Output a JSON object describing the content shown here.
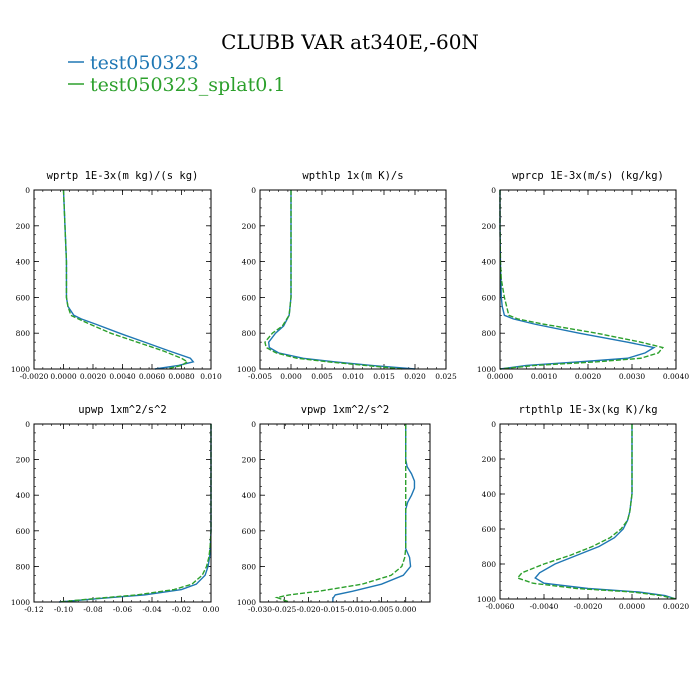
{
  "title": "CLUBB VAR at340E,-60N",
  "legend": [
    {
      "name": "test050323",
      "color": "#1f77b4",
      "dash": "solid"
    },
    {
      "name": "test050323_splat0.1",
      "color": "#2ca02c",
      "dash": "dashed"
    }
  ],
  "chart_data": [
    {
      "type": "line",
      "title": "wprtp  1E-3x(m kg)/(s kg)",
      "xlim": [
        -0.002,
        0.01
      ],
      "ylim": [
        1000,
        0
      ],
      "xticks": [
        "-0.0020",
        "0.0000",
        "0.0020",
        "0.0040",
        "0.0060",
        "0.0080",
        "0.010"
      ],
      "xtick_values": [
        -0.002,
        0.0,
        0.002,
        0.004,
        0.006,
        0.008,
        0.01
      ],
      "yticks": [
        "0",
        "200",
        "400",
        "600",
        "800",
        "1000"
      ],
      "ytick_values": [
        0,
        200,
        400,
        600,
        800,
        1000
      ],
      "series": [
        {
          "name": "test050323",
          "y": [
            0,
            200,
            400,
            500,
            600,
            650,
            700,
            720,
            750,
            800,
            850,
            900,
            940,
            960,
            980,
            1000
          ],
          "x": [
            0.0,
            0.0001,
            0.0002,
            0.0002,
            0.0002,
            0.0003,
            0.0007,
            0.0012,
            0.0022,
            0.0038,
            0.0055,
            0.0072,
            0.0086,
            0.0088,
            0.0078,
            0.0062
          ]
        },
        {
          "name": "test050323_splat0.1",
          "y": [
            0,
            200,
            400,
            500,
            600,
            650,
            700,
            720,
            750,
            800,
            850,
            900,
            940,
            960,
            980,
            1000
          ],
          "x": [
            0.0,
            0.0001,
            0.0002,
            0.0002,
            0.0002,
            0.0003,
            0.0005,
            0.001,
            0.0018,
            0.0032,
            0.005,
            0.0068,
            0.008,
            0.0084,
            0.008,
            0.007
          ]
        }
      ]
    },
    {
      "type": "line",
      "title": "wpthlp  1x(m K)/s",
      "xlim": [
        -0.005,
        0.025
      ],
      "ylim": [
        1000,
        0
      ],
      "xticks": [
        "-0.005",
        "0.000",
        "0.005",
        "0.010",
        "0.015",
        "0.020",
        "0.025"
      ],
      "xtick_values": [
        -0.005,
        0.0,
        0.005,
        0.01,
        0.015,
        0.02,
        0.025
      ],
      "yticks": [
        "0",
        "200",
        "400",
        "600",
        "800",
        "1000"
      ],
      "ytick_values": [
        0,
        200,
        400,
        600,
        800,
        1000
      ],
      "series": [
        {
          "name": "test050323",
          "y": [
            0,
            200,
            400,
            600,
            700,
            760,
            800,
            850,
            880,
            910,
            940,
            960,
            980,
            1000
          ],
          "x": [
            0.0,
            0.0,
            0.0,
            0.0,
            -0.0003,
            -0.0012,
            -0.0025,
            -0.0036,
            -0.0035,
            -0.002,
            0.002,
            0.007,
            0.013,
            0.02
          ]
        },
        {
          "name": "test050323_splat0.1",
          "y": [
            0,
            200,
            400,
            600,
            700,
            760,
            800,
            850,
            880,
            910,
            940,
            960,
            980,
            1000
          ],
          "x": [
            0.0,
            0.0,
            0.0,
            0.0,
            -0.0003,
            -0.0014,
            -0.003,
            -0.0042,
            -0.004,
            -0.0024,
            0.001,
            0.006,
            0.012,
            0.018
          ]
        }
      ]
    },
    {
      "type": "line",
      "title": "wprcp  1E-3x(m/s) (kg/kg)",
      "xlim": [
        0.0,
        0.004
      ],
      "ylim": [
        1000,
        0
      ],
      "xticks": [
        "0.0000",
        "0.0010",
        "0.0020",
        "0.0030",
        "0.0040"
      ],
      "xtick_values": [
        0.0,
        0.001,
        0.002,
        0.003,
        0.004
      ],
      "yticks": [
        "0",
        "200",
        "400",
        "600",
        "800",
        "1000"
      ],
      "ytick_values": [
        0,
        200,
        400,
        600,
        800,
        1000
      ],
      "series": [
        {
          "name": "test050323",
          "y": [
            0,
            200,
            400,
            500,
            600,
            650,
            700,
            720,
            750,
            800,
            850,
            880,
            910,
            940,
            960,
            980,
            1000
          ],
          "x": [
            0.0,
            0.0,
            1e-05,
            2e-05,
            3e-05,
            5e-05,
            0.0001,
            0.0003,
            0.0008,
            0.0018,
            0.0029,
            0.0035,
            0.0033,
            0.0029,
            0.0018,
            0.0006,
            0.0
          ]
        },
        {
          "name": "test050323_splat0.1",
          "y": [
            0,
            200,
            400,
            500,
            600,
            650,
            700,
            720,
            750,
            800,
            850,
            880,
            910,
            940,
            960,
            980,
            1000
          ],
          "x": [
            0.0,
            0.0,
            1e-05,
            3e-05,
            0.0001,
            0.00015,
            0.0002,
            0.0004,
            0.001,
            0.0022,
            0.0032,
            0.0037,
            0.0036,
            0.0032,
            0.0022,
            0.0008,
            0.0
          ]
        }
      ]
    },
    {
      "type": "line",
      "title": "upwp  1xm^2/s^2",
      "xlim": [
        -0.12,
        0.0
      ],
      "ylim": [
        1000,
        0
      ],
      "xticks": [
        "-0.12",
        "-0.10",
        "-0.08",
        "-0.06",
        "-0.04",
        "-0.02",
        "0.00"
      ],
      "xtick_values": [
        -0.12,
        -0.1,
        -0.08,
        -0.06,
        -0.04,
        -0.02,
        0.0
      ],
      "yticks": [
        "0",
        "200",
        "400",
        "600",
        "800",
        "1000"
      ],
      "ytick_values": [
        0,
        200,
        400,
        600,
        800,
        1000
      ],
      "series": [
        {
          "name": "test050323",
          "y": [
            0,
            200,
            400,
            600,
            700,
            750,
            800,
            850,
            900,
            930,
            960,
            980,
            1000
          ],
          "x": [
            0.0,
            0.0,
            0.0,
            0.0,
            -0.0005,
            -0.001,
            -0.002,
            -0.004,
            -0.01,
            -0.02,
            -0.045,
            -0.075,
            -0.103
          ]
        },
        {
          "name": "test050323_splat0.1",
          "y": [
            0,
            200,
            400,
            600,
            700,
            750,
            800,
            850,
            900,
            930,
            960,
            980,
            1000
          ],
          "x": [
            0.0,
            0.0,
            0.0,
            0.0,
            -0.0007,
            -0.0015,
            -0.003,
            -0.006,
            -0.013,
            -0.025,
            -0.05,
            -0.078,
            -0.103
          ]
        }
      ]
    },
    {
      "type": "line",
      "title": "vpwp  1xm^2/s^2",
      "xlim": [
        -0.03,
        0.005
      ],
      "ylim": [
        1000,
        0
      ],
      "xticks": [
        "-0.030",
        "-0.025",
        "-0.020",
        "-0.015",
        "-0.010",
        "-0.005",
        "0.000"
      ],
      "xtick_values": [
        -0.03,
        -0.025,
        -0.02,
        -0.015,
        -0.01,
        -0.005,
        0.0
      ],
      "yticks": [
        "0",
        "200",
        "400",
        "600",
        "800",
        "1000"
      ],
      "ytick_values": [
        0,
        200,
        400,
        600,
        800,
        1000
      ],
      "series": [
        {
          "name": "test050323",
          "y": [
            0,
            200,
            240,
            280,
            320,
            360,
            400,
            440,
            480,
            600,
            700,
            750,
            800,
            850,
            900,
            940,
            960,
            980,
            1000
          ],
          "x": [
            0.0,
            0.0,
            0.0003,
            0.0012,
            0.0018,
            0.0018,
            0.0012,
            0.0004,
            0.0,
            0.0,
            0.0,
            0.0008,
            0.001,
            -0.0005,
            -0.005,
            -0.011,
            -0.0145,
            -0.015,
            -0.015
          ]
        },
        {
          "name": "test050323_splat0.1",
          "y": [
            0,
            200,
            400,
            600,
            700,
            750,
            800,
            850,
            900,
            940,
            960,
            975,
            990,
            1000
          ],
          "x": [
            0.0,
            0.0,
            0.0,
            0.0,
            0.0,
            -0.0002,
            -0.0008,
            -0.003,
            -0.009,
            -0.018,
            -0.024,
            -0.0265,
            -0.025,
            -0.024
          ]
        }
      ]
    },
    {
      "type": "line",
      "title": "rtpthlp  1E-3x(kg K)/kg",
      "xlim": [
        -0.006,
        0.002
      ],
      "ylim": [
        1000,
        0
      ],
      "xticks": [
        "-0.0060",
        "-0.0040",
        "-0.0020",
        "0.0000",
        "0.0020"
      ],
      "xtick_values": [
        -0.006,
        -0.004,
        -0.002,
        0.0,
        0.002
      ],
      "yticks": [
        "0",
        "200",
        "400",
        "600",
        "800",
        "1000"
      ],
      "ytick_values": [
        0,
        200,
        400,
        600,
        800,
        1000
      ],
      "series": [
        {
          "name": "test050323",
          "y": [
            0,
            200,
            400,
            500,
            550,
            600,
            650,
            700,
            750,
            800,
            850,
            880,
            910,
            940,
            960,
            980,
            1000
          ],
          "x": [
            0.0,
            0.0,
            0.0,
            -0.0001,
            -0.0002,
            -0.0004,
            -0.0008,
            -0.0015,
            -0.0025,
            -0.0035,
            -0.0042,
            -0.0044,
            -0.004,
            -0.002,
            0.0003,
            0.0015,
            0.002
          ]
        },
        {
          "name": "test050323_splat0.1",
          "y": [
            0,
            200,
            400,
            500,
            550,
            600,
            650,
            700,
            750,
            800,
            850,
            880,
            910,
            940,
            960,
            980,
            1000
          ],
          "x": [
            0.0,
            0.0,
            0.0,
            -0.0001,
            -0.0002,
            -0.0005,
            -0.001,
            -0.0018,
            -0.0028,
            -0.004,
            -0.005,
            -0.0052,
            -0.0045,
            -0.0025,
            0.0,
            0.0013,
            0.002
          ]
        }
      ]
    }
  ]
}
